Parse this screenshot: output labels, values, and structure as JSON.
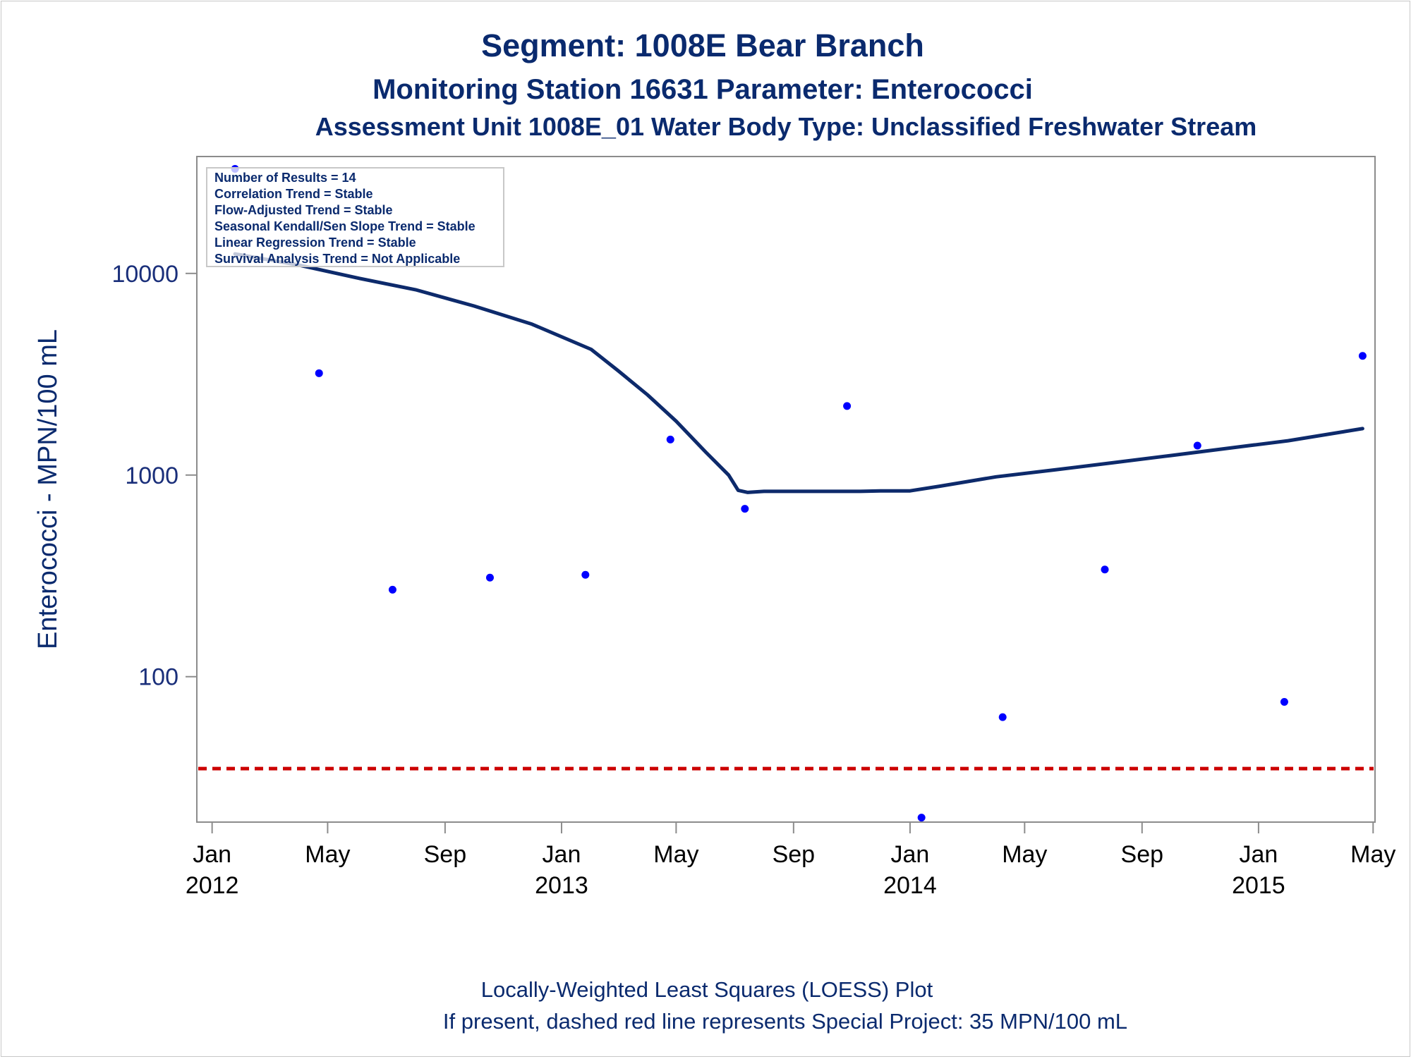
{
  "chart_data": {
    "type": "scatter",
    "title": "Segment: 1008E  Bear Branch",
    "subtitle": "Monitoring Station 16631 Parameter: Enterococci",
    "subtitle2": "Assessment Unit 1008E_01   Water Body Type: Unclassified Freshwater Stream",
    "xlabel": "",
    "ylabel": "Enterococci - MPN/100 mL",
    "y_scale": "log",
    "ylim": [
      19,
      38000
    ],
    "xlim": [
      "2011-12-16",
      "2015-05-03"
    ],
    "x_ticks": [
      {
        "date": "2012-01-01",
        "line1": "Jan",
        "line2": "2012"
      },
      {
        "date": "2012-05-01",
        "line1": "May",
        "line2": ""
      },
      {
        "date": "2012-09-01",
        "line1": "Sep",
        "line2": ""
      },
      {
        "date": "2013-01-01",
        "line1": "Jan",
        "line2": "2013"
      },
      {
        "date": "2013-05-01",
        "line1": "May",
        "line2": ""
      },
      {
        "date": "2013-09-01",
        "line1": "Sep",
        "line2": ""
      },
      {
        "date": "2014-01-01",
        "line1": "Jan",
        "line2": "2014"
      },
      {
        "date": "2014-05-01",
        "line1": "May",
        "line2": ""
      },
      {
        "date": "2014-09-01",
        "line1": "Sep",
        "line2": ""
      },
      {
        "date": "2015-01-01",
        "line1": "Jan",
        "line2": "2015"
      },
      {
        "date": "2015-05-01",
        "line1": "May",
        "line2": ""
      }
    ],
    "y_ticks": [
      {
        "value": 100,
        "label": "100"
      },
      {
        "value": 1000,
        "label": "1000"
      },
      {
        "value": 10000,
        "label": "10000"
      }
    ],
    "series": [
      {
        "kind": "points",
        "color": "#0000ff",
        "points": [
          {
            "x": "2012-01-25",
            "y": 33000
          },
          {
            "x": "2012-04-22",
            "y": 3200
          },
          {
            "x": "2012-07-08",
            "y": 270
          },
          {
            "x": "2012-10-18",
            "y": 310
          },
          {
            "x": "2013-01-26",
            "y": 320
          },
          {
            "x": "2013-04-25",
            "y": 1500
          },
          {
            "x": "2013-07-12",
            "y": 680
          },
          {
            "x": "2013-10-27",
            "y": 2200
          },
          {
            "x": "2014-01-13",
            "y": 20
          },
          {
            "x": "2014-04-08",
            "y": 63
          },
          {
            "x": "2014-07-24",
            "y": 340
          },
          {
            "x": "2014-10-29",
            "y": 1400
          },
          {
            "x": "2015-01-28",
            "y": 75
          },
          {
            "x": "2015-04-20",
            "y": 3900
          }
        ]
      },
      {
        "kind": "loess",
        "color": "#0d2a6b",
        "points": [
          {
            "x": "2012-01-25",
            "y": 12500
          },
          {
            "x": "2012-04-01",
            "y": 11000
          },
          {
            "x": "2012-06-01",
            "y": 9500
          },
          {
            "x": "2012-08-01",
            "y": 8300
          },
          {
            "x": "2012-10-01",
            "y": 6900
          },
          {
            "x": "2012-12-01",
            "y": 5600
          },
          {
            "x": "2013-02-01",
            "y": 4200
          },
          {
            "x": "2013-03-01",
            "y": 3300
          },
          {
            "x": "2013-04-01",
            "y": 2500
          },
          {
            "x": "2013-05-01",
            "y": 1850
          },
          {
            "x": "2013-06-01",
            "y": 1300
          },
          {
            "x": "2013-06-25",
            "y": 1000
          },
          {
            "x": "2013-07-05",
            "y": 840
          },
          {
            "x": "2013-07-15",
            "y": 820
          },
          {
            "x": "2013-08-01",
            "y": 830
          },
          {
            "x": "2013-11-10",
            "y": 830
          },
          {
            "x": "2013-12-01",
            "y": 835
          },
          {
            "x": "2014-01-01",
            "y": 835
          },
          {
            "x": "2014-02-01",
            "y": 880
          },
          {
            "x": "2014-04-01",
            "y": 980
          },
          {
            "x": "2014-06-01",
            "y": 1060
          },
          {
            "x": "2014-08-01",
            "y": 1150
          },
          {
            "x": "2014-10-01",
            "y": 1250
          },
          {
            "x": "2014-12-01",
            "y": 1360
          },
          {
            "x": "2015-02-01",
            "y": 1480
          },
          {
            "x": "2015-04-20",
            "y": 1700
          }
        ]
      }
    ],
    "reference_line": {
      "y": 35,
      "color": "#cc0000",
      "style": "dashed"
    },
    "inset": {
      "lines": [
        "Number of Results = 14",
        "Correlation Trend = Stable",
        "Flow-Adjusted Trend = Stable",
        "Seasonal Kendall/Sen Slope Trend = Stable",
        "Linear Regression Trend = Stable",
        "Survival Analysis Trend = Not Applicable"
      ],
      "position": "top-left"
    },
    "footnotes": [
      "Locally-Weighted Least Squares (LOESS) Plot",
      "If present, dashed red line represents Special Project: 35 MPN/100 mL"
    ],
    "grid": false,
    "legend": "none"
  }
}
